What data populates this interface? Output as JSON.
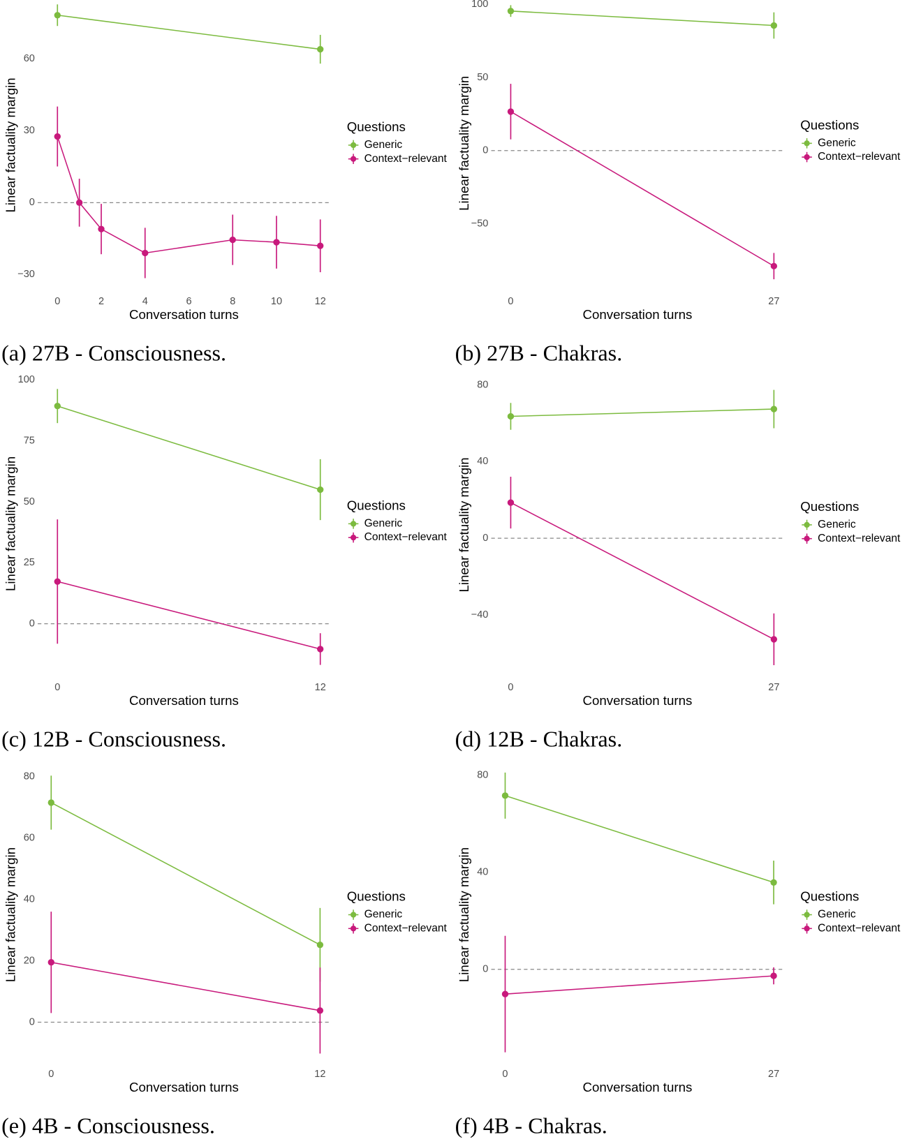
{
  "chart_data": [
    {
      "type": "line",
      "caption": "(a) 27B - Consciousness.",
      "xlabel": "Conversation turns",
      "ylabel": "Linear factuality margin",
      "legend_title": "Questions",
      "legend": "right",
      "grid": false,
      "reference_line": 0,
      "xlim": [
        -0.9,
        12.45
      ],
      "xticks": [
        0,
        2,
        4,
        6,
        8,
        10,
        12
      ],
      "ylim": [
        -35,
        83
      ],
      "yticks": [
        {
          "value": -30,
          "label": "−30"
        },
        0,
        30,
        60
      ],
      "series": [
        {
          "name": "Generic",
          "color": "#7cbb3f",
          "x": [
            0,
            12
          ],
          "values": [
            78.2,
            64
          ],
          "errors": [
            4.5,
            6
          ]
        },
        {
          "name": "Context−relevant",
          "color": "#c8197c",
          "x": [
            0,
            1,
            2,
            4,
            8,
            10,
            12
          ],
          "values": [
            27.6,
            0,
            -11,
            -21,
            -15.5,
            -16.5,
            -18
          ],
          "errors": [
            12.5,
            10,
            10.5,
            10.5,
            10.5,
            11,
            11
          ]
        }
      ]
    },
    {
      "type": "line",
      "caption": "(b) 27B - Chakras.",
      "xlabel": "Conversation turns",
      "ylabel": "Linear factuality margin",
      "legend_title": "Questions",
      "legend": "right",
      "grid": false,
      "reference_line": 0,
      "xlim": [
        -2,
        28
      ],
      "xticks": [
        0,
        27
      ],
      "ylim": [
        -93,
        103
      ],
      "yticks": [
        {
          "value": -50,
          "label": "−50"
        },
        0,
        50,
        100
      ],
      "series": [
        {
          "name": "Generic",
          "color": "#7cbb3f",
          "x": [
            0,
            27
          ],
          "values": [
            95.5,
            85.6
          ],
          "errors": [
            4,
            9
          ]
        },
        {
          "name": "Context−relevant",
          "color": "#c8197c",
          "x": [
            0,
            27
          ],
          "values": [
            26.7,
            -79
          ],
          "errors": [
            19,
            9
          ]
        }
      ]
    },
    {
      "type": "line",
      "caption": "(c) 12B - Consciousness.",
      "xlabel": "Conversation turns",
      "ylabel": "Linear factuality margin",
      "legend_title": "Questions",
      "legend": "right",
      "grid": false,
      "reference_line": 0,
      "xlim": [
        -0.9,
        12.45
      ],
      "xticks": [
        0,
        12
      ],
      "ylim": [
        -20,
        102
      ],
      "yticks": [
        0,
        25,
        50,
        75,
        100
      ],
      "series": [
        {
          "name": "Generic",
          "color": "#7cbb3f",
          "x": [
            0,
            12
          ],
          "values": [
            89.3,
            55
          ],
          "errors": [
            7,
            12.5
          ]
        },
        {
          "name": "Context−relevant",
          "color": "#c8197c",
          "x": [
            0,
            12
          ],
          "values": [
            17.3,
            -10.4
          ],
          "errors": [
            25.5,
            6.5
          ]
        }
      ]
    },
    {
      "type": "line",
      "caption": "(d) 12B - Chakras.",
      "xlabel": "Conversation turns",
      "ylabel": "Linear factuality margin",
      "legend_title": "Questions",
      "legend": "right",
      "grid": false,
      "reference_line": 0,
      "xlim": [
        -2,
        28
      ],
      "xticks": [
        0,
        27
      ],
      "ylim": [
        -70,
        84
      ],
      "yticks": [
        {
          "value": -40,
          "label": "−40"
        },
        0,
        40,
        80
      ],
      "series": [
        {
          "name": "Generic",
          "color": "#7cbb3f",
          "x": [
            0,
            27
          ],
          "values": [
            63.6,
            67.4
          ],
          "errors": [
            7,
            10
          ]
        },
        {
          "name": "Context−relevant",
          "color": "#c8197c",
          "x": [
            0,
            27
          ],
          "values": [
            18.6,
            -52.7
          ],
          "errors": [
            13.5,
            13.5
          ]
        }
      ]
    },
    {
      "type": "line",
      "caption": "(e) 4B - Consciousness.",
      "xlabel": "Conversation turns",
      "ylabel": "Linear factuality margin",
      "legend_title": "Questions",
      "legend": "right",
      "grid": false,
      "reference_line": 0,
      "xlim": [
        -0.6,
        12.45
      ],
      "xticks": [
        0,
        12
      ],
      "ylim": [
        -12,
        82
      ],
      "yticks": [
        0,
        20,
        40,
        60,
        80
      ],
      "series": [
        {
          "name": "Generic",
          "color": "#7cbb3f",
          "x": [
            0,
            12
          ],
          "values": [
            71.5,
            25.2
          ],
          "errors": [
            8.8,
            12
          ]
        },
        {
          "name": "Context−relevant",
          "color": "#c8197c",
          "x": [
            0,
            12
          ],
          "values": [
            19.5,
            3.8
          ],
          "errors": [
            16.5,
            14
          ]
        }
      ]
    },
    {
      "type": "line",
      "caption": "(f) 4B - Chakras.",
      "xlabel": "Conversation turns",
      "ylabel": "Linear factuality margin",
      "legend_title": "Questions",
      "legend": "right",
      "grid": false,
      "reference_line": 0,
      "xlim": [
        -1.4,
        28
      ],
      "xticks": [
        0,
        27
      ],
      "ylim": [
        -37,
        82
      ],
      "yticks": [
        0,
        40,
        80
      ],
      "series": [
        {
          "name": "Generic",
          "color": "#7cbb3f",
          "x": [
            0,
            27
          ],
          "values": [
            71.6,
            35.8
          ],
          "errors": [
            9.5,
            9
          ]
        },
        {
          "name": "Context−relevant",
          "color": "#c8197c",
          "x": [
            0,
            27
          ],
          "values": [
            -10.2,
            -2.7
          ],
          "errors": [
            24,
            3.5
          ]
        }
      ]
    }
  ]
}
